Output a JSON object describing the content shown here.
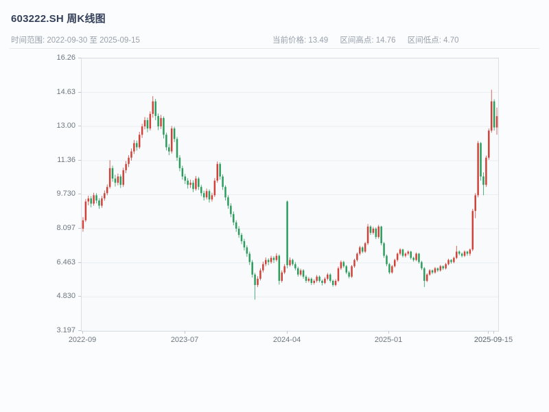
{
  "header": {
    "title": "603222.SH 周K线图",
    "subtitle_left": "时间范围: 2022-09-30 至 2025-09-15",
    "stats": [
      "当前价格: 13.49",
      "区间高点: 14.76",
      "区间低点: 4.70"
    ]
  },
  "chart_data": {
    "type": "candlestick",
    "title": "603222.SH 周K线图",
    "frequency": "weekly",
    "date_range": {
      "start": "2022-09-30",
      "end": "2025-09-15"
    },
    "current_price": 13.49,
    "range_high": 14.76,
    "range_low": 4.7,
    "up_color": "#cf423a",
    "down_color": "#2a9d5c",
    "grid": true,
    "ylim": [
      3.197,
      16.26
    ],
    "y_ticks": [
      "16.26",
      "14.63",
      "13.00",
      "11.36",
      "9.730",
      "8.097",
      "6.463",
      "4.830",
      "3.197"
    ],
    "y_tick_values": [
      16.26,
      14.63,
      13.0,
      11.36,
      9.73,
      8.097,
      6.463,
      4.83,
      3.197
    ],
    "x_ticks": [
      {
        "index": 0,
        "label": "2022-09"
      },
      {
        "index": 38,
        "label": "2023-07"
      },
      {
        "index": 76,
        "label": "2024-04"
      },
      {
        "index": 114,
        "label": "2025-01"
      },
      {
        "index": 151,
        "label": "2025-09"
      },
      {
        "index": 153,
        "label": "2025-09-15"
      }
    ],
    "candles": [
      [
        8.1,
        8.65,
        7.95,
        8.5
      ],
      [
        8.5,
        9.52,
        8.42,
        9.4
      ],
      [
        9.4,
        9.68,
        9.22,
        9.55
      ],
      [
        9.55,
        9.66,
        9.12,
        9.3
      ],
      [
        9.3,
        9.82,
        9.2,
        9.7
      ],
      [
        9.7,
        9.8,
        9.31,
        9.45
      ],
      [
        9.45,
        9.56,
        9.05,
        9.2
      ],
      [
        9.2,
        9.67,
        9.1,
        9.55
      ],
      [
        9.55,
        9.93,
        9.44,
        9.8
      ],
      [
        9.8,
        10.22,
        9.7,
        10.1
      ],
      [
        10.1,
        11.38,
        10.02,
        11.0
      ],
      [
        11.0,
        11.12,
        10.35,
        10.5
      ],
      [
        10.5,
        10.68,
        10.12,
        10.3
      ],
      [
        10.3,
        10.74,
        10.18,
        10.6
      ],
      [
        10.6,
        10.7,
        10.05,
        10.2
      ],
      [
        10.2,
        11.02,
        10.1,
        10.9
      ],
      [
        10.9,
        11.34,
        10.76,
        11.2
      ],
      [
        11.2,
        11.62,
        11.05,
        11.5
      ],
      [
        11.5,
        11.94,
        11.36,
        11.8
      ],
      [
        11.8,
        12.35,
        11.68,
        12.2
      ],
      [
        12.2,
        12.32,
        11.84,
        12.0
      ],
      [
        12.0,
        12.74,
        11.92,
        12.6
      ],
      [
        12.6,
        13.12,
        12.45,
        13.0
      ],
      [
        13.0,
        13.45,
        12.86,
        13.3
      ],
      [
        13.3,
        13.42,
        12.72,
        12.9
      ],
      [
        12.9,
        13.72,
        12.8,
        13.6
      ],
      [
        13.6,
        14.45,
        13.42,
        14.2
      ],
      [
        14.2,
        14.32,
        13.3,
        13.5
      ],
      [
        13.5,
        13.62,
        12.82,
        13.0
      ],
      [
        13.0,
        13.55,
        12.88,
        13.4
      ],
      [
        13.4,
        13.48,
        12.42,
        12.6
      ],
      [
        12.6,
        12.7,
        11.85,
        12.0
      ],
      [
        12.0,
        12.16,
        11.62,
        11.8
      ],
      [
        11.8,
        13.02,
        11.7,
        12.9
      ],
      [
        12.9,
        12.98,
        12.25,
        12.4
      ],
      [
        12.4,
        12.5,
        11.35,
        11.5
      ],
      [
        11.5,
        11.62,
        10.85,
        11.0
      ],
      [
        11.0,
        11.12,
        10.45,
        10.6
      ],
      [
        10.6,
        10.72,
        10.24,
        10.4
      ],
      [
        10.4,
        10.52,
        10.02,
        10.2
      ],
      [
        10.2,
        10.45,
        10.05,
        10.3
      ],
      [
        10.3,
        10.42,
        9.85,
        10.0
      ],
      [
        10.0,
        10.62,
        9.92,
        10.5
      ],
      [
        10.5,
        10.58,
        9.95,
        10.1
      ],
      [
        10.1,
        10.2,
        9.66,
        9.8
      ],
      [
        9.8,
        9.92,
        9.45,
        9.6
      ],
      [
        9.6,
        10.02,
        9.5,
        9.9
      ],
      [
        9.9,
        9.98,
        9.35,
        9.5
      ],
      [
        9.5,
        9.82,
        9.4,
        9.7
      ],
      [
        9.7,
        10.52,
        9.62,
        10.4
      ],
      [
        10.4,
        11.32,
        10.3,
        11.2
      ],
      [
        11.2,
        11.28,
        10.45,
        10.6
      ],
      [
        10.6,
        10.7,
        9.96,
        10.1
      ],
      [
        10.1,
        10.18,
        9.45,
        9.6
      ],
      [
        9.6,
        9.7,
        9.05,
        9.2
      ],
      [
        9.2,
        9.32,
        8.65,
        8.8
      ],
      [
        8.8,
        8.92,
        8.26,
        8.4
      ],
      [
        8.4,
        8.5,
        7.95,
        8.1
      ],
      [
        8.1,
        8.22,
        7.66,
        7.8
      ],
      [
        7.8,
        7.9,
        7.36,
        7.5
      ],
      [
        7.5,
        7.62,
        7.06,
        7.2
      ],
      [
        7.2,
        7.3,
        6.75,
        6.9
      ],
      [
        6.9,
        7.0,
        6.36,
        6.5
      ],
      [
        6.5,
        6.6,
        5.76,
        5.9
      ],
      [
        5.9,
        5.98,
        4.7,
        5.4
      ],
      [
        5.4,
        5.82,
        5.3,
        5.7
      ],
      [
        5.7,
        6.2,
        5.62,
        6.1
      ],
      [
        6.1,
        6.52,
        6.0,
        6.4
      ],
      [
        6.4,
        6.72,
        6.3,
        6.6
      ],
      [
        6.6,
        6.68,
        6.35,
        6.5
      ],
      [
        6.5,
        6.8,
        6.42,
        6.7
      ],
      [
        6.7,
        6.78,
        6.46,
        6.6
      ],
      [
        6.6,
        6.92,
        6.52,
        6.8
      ],
      [
        6.8,
        6.86,
        5.42,
        5.6
      ],
      [
        5.6,
        6.1,
        5.52,
        6.0
      ],
      [
        6.0,
        6.4,
        5.92,
        6.3
      ],
      [
        9.4,
        9.45,
        6.2,
        6.35
      ],
      [
        6.35,
        6.72,
        6.28,
        6.6
      ],
      [
        6.6,
        6.66,
        6.32,
        6.4
      ],
      [
        6.4,
        6.5,
        6.1,
        6.2
      ],
      [
        6.2,
        6.28,
        5.8,
        5.9
      ],
      [
        5.9,
        6.18,
        5.82,
        6.1
      ],
      [
        6.1,
        6.16,
        5.7,
        5.8
      ],
      [
        5.8,
        5.88,
        5.5,
        5.6
      ],
      [
        5.6,
        5.78,
        5.52,
        5.7
      ],
      [
        5.7,
        5.76,
        5.4,
        5.5
      ],
      [
        5.5,
        5.68,
        5.42,
        5.6
      ],
      [
        5.6,
        5.88,
        5.52,
        5.8
      ],
      [
        5.8,
        5.86,
        5.52,
        5.6
      ],
      [
        5.6,
        5.66,
        5.38,
        5.5
      ],
      [
        5.5,
        5.78,
        5.44,
        5.7
      ],
      [
        5.7,
        5.98,
        5.62,
        5.9
      ],
      [
        5.9,
        5.96,
        5.52,
        5.6
      ],
      [
        5.6,
        5.66,
        5.32,
        5.4
      ],
      [
        5.4,
        5.68,
        5.34,
        5.6
      ],
      [
        5.6,
        6.28,
        5.54,
        6.2
      ],
      [
        6.2,
        6.58,
        6.12,
        6.5
      ],
      [
        6.5,
        6.56,
        6.22,
        6.3
      ],
      [
        6.3,
        6.36,
        5.92,
        6.0
      ],
      [
        6.0,
        6.08,
        5.72,
        5.8
      ],
      [
        5.8,
        6.36,
        5.74,
        6.3
      ],
      [
        6.3,
        6.66,
        6.22,
        6.6
      ],
      [
        6.6,
        6.96,
        6.52,
        6.9
      ],
      [
        6.9,
        7.28,
        6.82,
        7.2
      ],
      [
        7.2,
        7.26,
        6.92,
        7.0
      ],
      [
        7.0,
        7.46,
        6.94,
        7.4
      ],
      [
        7.4,
        8.32,
        7.32,
        8.2
      ],
      [
        8.2,
        8.26,
        7.8,
        7.9
      ],
      [
        7.9,
        8.18,
        7.82,
        8.1
      ],
      [
        8.1,
        8.16,
        7.6,
        7.7
      ],
      [
        7.7,
        8.28,
        7.62,
        8.2
      ],
      [
        8.2,
        8.24,
        7.3,
        7.4
      ],
      [
        7.4,
        7.46,
        6.7,
        6.8
      ],
      [
        6.8,
        6.86,
        6.3,
        6.4
      ],
      [
        6.4,
        6.46,
        5.92,
        6.0
      ],
      [
        6.0,
        6.36,
        5.94,
        6.3
      ],
      [
        6.3,
        6.66,
        6.24,
        6.6
      ],
      [
        6.6,
        6.96,
        6.52,
        6.9
      ],
      [
        6.9,
        7.16,
        6.82,
        7.1
      ],
      [
        7.1,
        7.14,
        6.72,
        6.8
      ],
      [
        6.8,
        6.96,
        6.72,
        6.9
      ],
      [
        6.9,
        7.06,
        6.82,
        7.0
      ],
      [
        7.0,
        7.04,
        6.62,
        6.7
      ],
      [
        6.7,
        6.76,
        6.52,
        6.6
      ],
      [
        6.6,
        6.96,
        6.54,
        6.9
      ],
      [
        6.9,
        6.94,
        6.42,
        6.5
      ],
      [
        6.5,
        6.56,
        6.12,
        6.2
      ],
      [
        6.2,
        6.26,
        5.3,
        5.6
      ],
      [
        5.6,
        5.96,
        5.54,
        5.9
      ],
      [
        5.9,
        6.16,
        5.84,
        6.1
      ],
      [
        6.1,
        6.14,
        5.92,
        6.0
      ],
      [
        6.0,
        6.26,
        5.94,
        6.2
      ],
      [
        6.2,
        6.24,
        6.02,
        6.1
      ],
      [
        6.1,
        6.36,
        6.04,
        6.3
      ],
      [
        6.3,
        6.34,
        6.12,
        6.2
      ],
      [
        6.2,
        6.46,
        6.14,
        6.4
      ],
      [
        6.4,
        6.66,
        6.34,
        6.6
      ],
      [
        6.6,
        6.64,
        6.42,
        6.5
      ],
      [
        6.5,
        6.76,
        6.44,
        6.7
      ],
      [
        6.7,
        7.28,
        6.64,
        7.0
      ],
      [
        7.0,
        7.06,
        6.82,
        6.9
      ],
      [
        6.9,
        6.96,
        6.72,
        6.8
      ],
      [
        6.8,
        7.06,
        6.74,
        7.0
      ],
      [
        7.0,
        7.04,
        6.8,
        6.9
      ],
      [
        6.9,
        7.15,
        6.8,
        7.1
      ],
      [
        7.1,
        9.05,
        7.02,
        8.95
      ],
      [
        8.95,
        9.8,
        8.6,
        9.7
      ],
      [
        9.7,
        12.3,
        9.6,
        12.2
      ],
      [
        12.2,
        12.25,
        10.4,
        10.6
      ],
      [
        10.6,
        10.8,
        9.7,
        10.2
      ],
      [
        10.2,
        11.6,
        10.1,
        11.5
      ],
      [
        11.5,
        12.9,
        11.4,
        12.8
      ],
      [
        12.8,
        14.76,
        12.7,
        14.2
      ],
      [
        14.2,
        14.3,
        12.8,
        12.95
      ],
      [
        12.95,
        13.9,
        12.6,
        13.49
      ]
    ]
  }
}
